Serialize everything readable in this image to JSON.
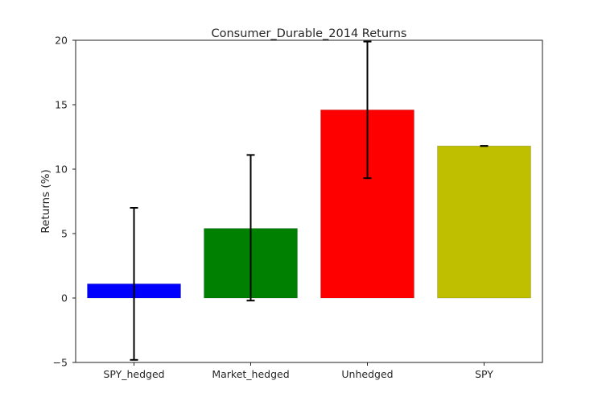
{
  "chart_data": {
    "type": "bar",
    "title": "Consumer_Durable_2014 Returns",
    "xlabel": "",
    "ylabel": "Returns (%)",
    "ylim": [
      -5,
      20
    ],
    "yticks": [
      -5,
      0,
      5,
      10,
      15,
      20
    ],
    "categories": [
      "SPY_hedged",
      "Market_hedged",
      "Unhedged",
      "SPY"
    ],
    "values": [
      1.1,
      5.4,
      14.6,
      11.8
    ],
    "error_low": [
      -4.8,
      -0.2,
      9.3,
      11.8
    ],
    "error_high": [
      7.0,
      11.1,
      19.9,
      11.8
    ],
    "colors": [
      "#0000ff",
      "#008000",
      "#ff0000",
      "#bfbf00"
    ],
    "grid": false,
    "legend": "none"
  }
}
